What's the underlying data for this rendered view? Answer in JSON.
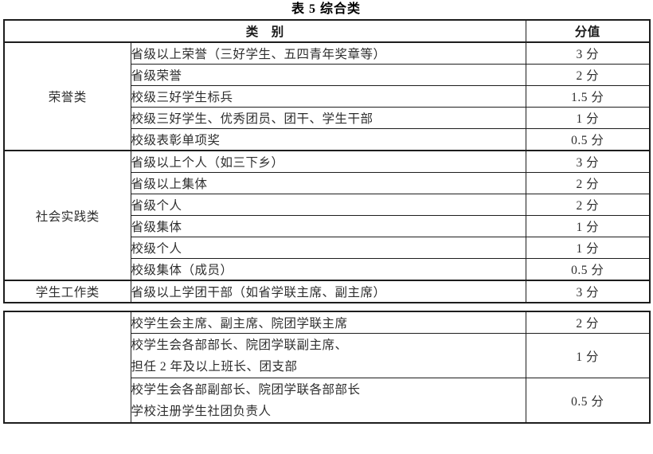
{
  "title": "表 5 综合类",
  "table": {
    "headers": {
      "category": "类　别",
      "score": "分值"
    },
    "sections": [
      {
        "group": "荣誉类",
        "rows": [
          {
            "item": "省级以上荣誉（三好学生、五四青年奖章等）",
            "score": "3 分"
          },
          {
            "item": "省级荣誉",
            "score": "2 分"
          },
          {
            "item": "校级三好学生标兵",
            "score": "1.5 分"
          },
          {
            "item": "校级三好学生、优秀团员、团干、学生干部",
            "score": "1 分"
          },
          {
            "item": "校级表彰单项奖",
            "score": "0.5 分"
          }
        ]
      },
      {
        "group": "社会实践类",
        "rows": [
          {
            "item": "省级以上个人（如三下乡）",
            "score": "3 分"
          },
          {
            "item": "省级以上集体",
            "score": "2 分"
          },
          {
            "item": "省级个人",
            "score": "2 分"
          },
          {
            "item": "省级集体",
            "score": "1 分"
          },
          {
            "item": "校级个人",
            "score": "1 分"
          },
          {
            "item": "校级集体（成员）",
            "score": "0.5 分"
          }
        ]
      },
      {
        "group": "学生工作类",
        "rows": [
          {
            "item": "省级以上学团干部（如省学联主席、副主席）",
            "score": "3 分"
          }
        ]
      }
    ]
  },
  "table_continued": {
    "sections": [
      {
        "group": "",
        "rows": [
          {
            "item": "校学生会主席、副主席、院团学联主席",
            "score": "2 分"
          },
          {
            "item": "校学生会各部部长、院团学联副主席、\n担任 2 年及以上班长、团支部",
            "score": "1 分"
          },
          {
            "item": "校学生会各部副部长、院团学联各部部长\n学校注册学生社团负责人",
            "score": "0.5 分"
          }
        ]
      }
    ]
  }
}
